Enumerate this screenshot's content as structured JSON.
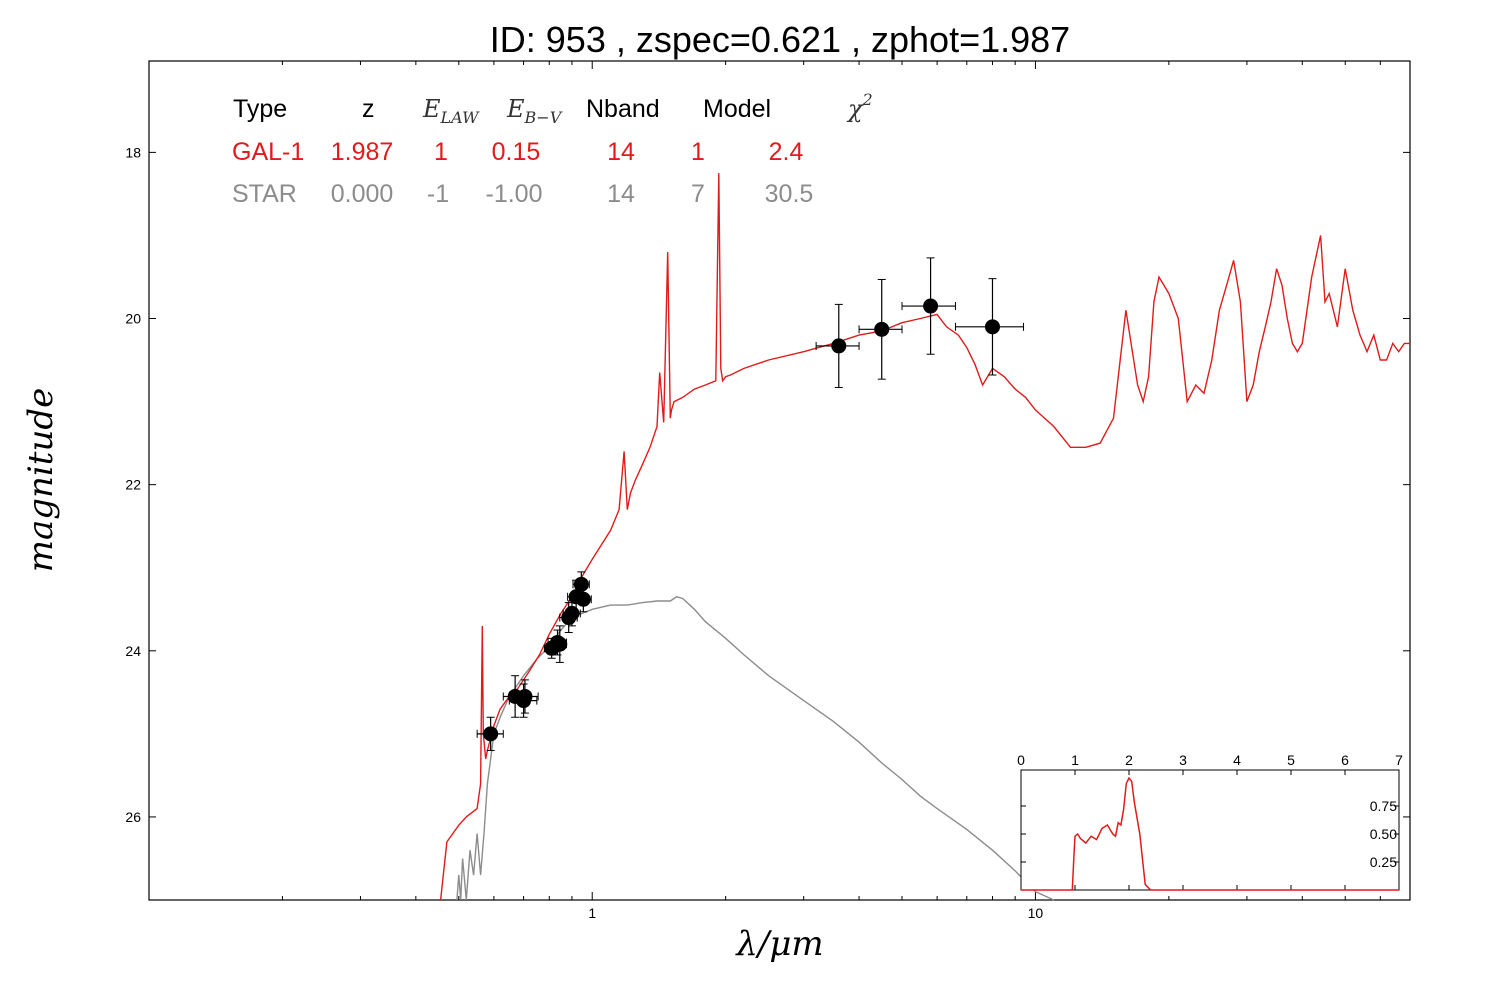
{
  "title": "ID:  953   , zspec=0.621 , zphot=1.987",
  "colors": {
    "galaxy": "#e01b1b",
    "star": "#8c8c8c",
    "points": "#000000"
  },
  "table": {
    "headers": {
      "type": "Type",
      "z": "z",
      "elaw": "E",
      "elaw_sub": "LAW",
      "ebv": "E",
      "ebv_sub": "B−V",
      "nband": "Nband",
      "model": "Model",
      "chi": "χ",
      "chi_sup": "2"
    },
    "rows": [
      {
        "key": "galaxy",
        "type": "GAL-1",
        "z": "1.987",
        "elaw": "1",
        "ebv": "0.15",
        "nband": "14",
        "model": "1",
        "chi2": "2.4"
      },
      {
        "key": "star",
        "type": "STAR",
        "z": "0.000",
        "elaw": "-1",
        "ebv": "-1.00",
        "nband": "14",
        "model": "7",
        "chi2": "30.5"
      }
    ]
  },
  "chart_data": [
    {
      "type": "line",
      "xlabel": "λ/μm",
      "ylabel": "magnitude",
      "x_scale": "log",
      "xlim": [
        0.1,
        70
      ],
      "ylim": [
        27,
        16.9
      ],
      "y_inverted": true,
      "x_ticks": [
        1,
        10
      ],
      "x_tick_labels": [
        "1",
        "10"
      ],
      "y_ticks": [
        18,
        20,
        22,
        24,
        26
      ],
      "y_tick_labels": [
        "18",
        "20",
        "22",
        "24",
        "26"
      ],
      "series": [
        {
          "key": "galaxy",
          "color": "#e01b1b",
          "x": [
            0.455,
            0.47,
            0.5,
            0.52,
            0.55,
            0.56,
            0.565,
            0.568,
            0.575,
            0.58,
            0.6,
            0.62,
            0.65,
            0.68,
            0.72,
            0.76,
            0.8,
            0.85,
            0.9,
            0.95,
            1.0,
            1.05,
            1.1,
            1.15,
            1.18,
            1.2,
            1.22,
            1.25,
            1.3,
            1.35,
            1.4,
            1.42,
            1.45,
            1.48,
            1.5,
            1.51,
            1.53,
            1.6,
            1.7,
            1.8,
            1.9,
            1.93,
            1.95,
            1.97,
            2.0,
            2.05,
            2.2,
            2.5,
            3.0,
            3.5,
            4.0,
            4.5,
            5.0,
            5.5,
            6.0,
            6.3,
            6.7,
            7.0,
            7.3,
            7.6,
            8.0,
            8.5,
            9.0,
            9.5,
            10.0,
            11.0,
            12.0,
            13.0,
            14.0,
            15.0,
            16.0,
            17.0,
            17.5,
            18.0,
            18.5,
            19.0,
            20.0,
            21.0,
            22.0,
            23.0,
            24.0,
            25.0,
            26.0,
            27.0,
            28.0,
            29.0,
            30.0,
            31.0,
            32.0,
            33.0,
            34.0,
            35.0,
            36.0,
            37.0,
            38.0,
            39.0,
            40.0,
            42.0,
            44.0,
            45.0,
            46.0,
            48.0,
            50.0,
            52.0,
            54.0,
            55.0,
            56.0,
            58.0,
            60.0,
            62.0,
            64.0,
            66.0,
            68.0,
            70.0
          ],
          "y": [
            27.0,
            26.3,
            26.1,
            26.0,
            25.9,
            25.6,
            23.7,
            25.0,
            25.3,
            25.2,
            24.9,
            24.7,
            24.55,
            24.45,
            24.25,
            24.05,
            23.8,
            23.55,
            23.35,
            23.1,
            22.9,
            22.72,
            22.55,
            22.3,
            21.6,
            22.3,
            22.1,
            21.95,
            21.75,
            21.55,
            21.3,
            20.65,
            21.25,
            19.2,
            21.2,
            21.1,
            21.0,
            20.95,
            20.85,
            20.8,
            20.75,
            18.25,
            20.6,
            20.75,
            20.7,
            20.68,
            20.6,
            20.5,
            20.4,
            20.3,
            20.2,
            20.15,
            20.05,
            20.0,
            19.95,
            20.1,
            20.2,
            20.35,
            20.55,
            20.8,
            20.6,
            20.7,
            20.85,
            20.95,
            21.1,
            21.3,
            21.55,
            21.55,
            21.5,
            21.2,
            19.9,
            20.8,
            21.0,
            20.7,
            19.8,
            19.5,
            19.7,
            20.0,
            21.0,
            20.8,
            20.9,
            20.5,
            19.9,
            19.6,
            19.3,
            19.8,
            21.0,
            20.8,
            20.4,
            20.1,
            19.8,
            19.4,
            19.6,
            20.0,
            20.3,
            20.4,
            20.3,
            19.5,
            19.0,
            19.8,
            19.7,
            20.1,
            19.4,
            19.9,
            20.2,
            20.3,
            20.4,
            20.2,
            20.5,
            20.5,
            20.3,
            20.4,
            20.3,
            20.3
          ]
        },
        {
          "key": "star",
          "color": "#8c8c8c",
          "x": [
            0.495,
            0.5,
            0.505,
            0.51,
            0.52,
            0.53,
            0.54,
            0.55,
            0.56,
            0.57,
            0.58,
            0.6,
            0.62,
            0.65,
            0.7,
            0.75,
            0.8,
            0.85,
            0.9,
            0.95,
            1.0,
            1.1,
            1.2,
            1.3,
            1.4,
            1.5,
            1.55,
            1.6,
            1.7,
            1.8,
            2.0,
            2.2,
            2.5,
            3.0,
            3.5,
            4.0,
            4.5,
            5.0,
            5.5,
            6.0,
            7.0,
            8.0,
            9.0,
            10.0,
            11.0
          ],
          "y": [
            27.0,
            26.7,
            27.0,
            26.5,
            27.0,
            26.4,
            26.7,
            26.2,
            26.7,
            26.2,
            25.6,
            25.0,
            24.8,
            24.55,
            24.3,
            24.1,
            23.95,
            23.75,
            23.6,
            23.55,
            23.5,
            23.45,
            23.45,
            23.42,
            23.4,
            23.4,
            23.35,
            23.37,
            23.5,
            23.65,
            23.85,
            24.05,
            24.3,
            24.6,
            24.85,
            25.1,
            25.35,
            25.55,
            25.75,
            25.9,
            26.15,
            26.4,
            26.65,
            26.9,
            27.0
          ]
        }
      ],
      "points": {
        "x": [
          0.59,
          0.67,
          0.7,
          0.705,
          0.81,
          0.835,
          0.845,
          0.885,
          0.9,
          0.92,
          0.945,
          0.955,
          3.6,
          4.5,
          5.8,
          8.0
        ],
        "y": [
          25.0,
          24.55,
          24.6,
          24.55,
          23.97,
          23.9,
          23.92,
          23.6,
          23.55,
          23.35,
          23.2,
          23.38,
          20.33,
          20.13,
          19.85,
          20.1
        ],
        "xerr": [
          0.04,
          0.04,
          0.05,
          0.05,
          0.03,
          0.04,
          0.03,
          0.04,
          0.04,
          0.04,
          0.04,
          0.04,
          0.4,
          0.5,
          0.8,
          1.4
        ],
        "yerr": [
          0.2,
          0.25,
          0.2,
          0.2,
          0.12,
          0.15,
          0.22,
          0.18,
          0.15,
          0.2,
          0.15,
          0.15,
          0.5,
          0.6,
          0.58,
          0.58
        ]
      }
    },
    {
      "type": "line",
      "title": "",
      "xlim": [
        0,
        7
      ],
      "ylim": [
        0,
        1.0
      ],
      "x_ticks": [
        0,
        1,
        2,
        3,
        4,
        5,
        6,
        7
      ],
      "x_tick_labels": [
        "0",
        "1",
        "2",
        "3",
        "4",
        "5",
        "6",
        "7"
      ],
      "y_ticks": [
        0.25,
        0.5,
        0.75
      ],
      "y_tick_labels": [
        "0.25",
        "0.50",
        "0.75"
      ],
      "series": [
        {
          "key": "pdf",
          "color": "#e01b1b",
          "x": [
            0,
            0.95,
            0.98,
            1.0,
            1.05,
            1.1,
            1.2,
            1.3,
            1.4,
            1.5,
            1.6,
            1.7,
            1.75,
            1.8,
            1.85,
            1.9,
            1.95,
            2.0,
            2.05,
            2.1,
            2.2,
            2.3,
            2.4,
            7.0
          ],
          "y": [
            0,
            0,
            0.3,
            0.48,
            0.5,
            0.46,
            0.42,
            0.48,
            0.45,
            0.55,
            0.58,
            0.5,
            0.48,
            0.6,
            0.58,
            0.72,
            0.95,
            1.0,
            0.97,
            0.78,
            0.5,
            0.05,
            0,
            0
          ]
        }
      ]
    }
  ]
}
